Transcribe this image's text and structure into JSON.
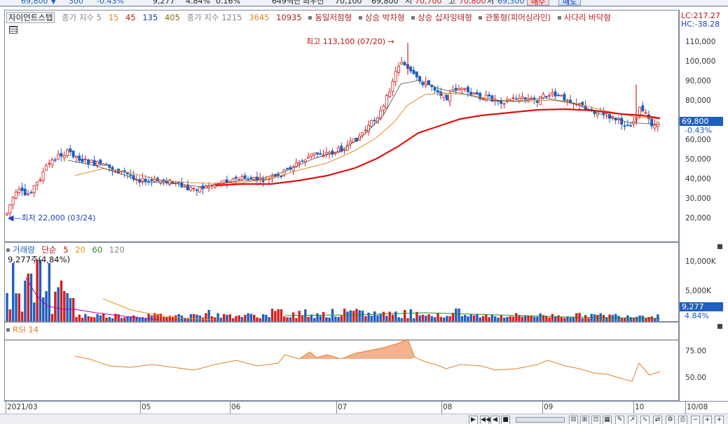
{
  "top_strip": {
    "price": "69,800",
    "arrow": "▼",
    "change": "300",
    "change_pct": "-0.43%",
    "volume": "9,277",
    "vol_pct": "4.84%",
    "turnover_pct": "0.16%",
    "amount": "649백만",
    "label_prev": "최우선",
    "prev_val": "70,100",
    "open_val": "69,800",
    "label_hi": "시",
    "hi_val": "70,700",
    "label_g": "고",
    "g_val": "70,800",
    "label_lo": "저",
    "lo_val": "69,300",
    "buy_btn": "매수",
    "sell_btn": "매도"
  },
  "price_legend": {
    "indicator_name": "자이언트스텝",
    "ma_label_1": "종가 지수 5",
    "ma_vals_1": [
      "15",
      "45",
      "135",
      "405"
    ],
    "ma_label_2": "종가 지수 1215",
    "ma_vals_2": [
      "3645",
      "10935"
    ],
    "patterns": [
      "동일저점형",
      "상승 박차형",
      "상승 십자잉태형",
      "관통형(피어싱라인)",
      "사다리 바닥형"
    ]
  },
  "price_axis": {
    "lc": "LC:217.27",
    "hc": "HC:-38.28",
    "ticks": [
      "110,000",
      "100,000",
      "90,000",
      "80,000",
      "70,000",
      "60,000",
      "50,000",
      "40,000",
      "30,000",
      "20,000"
    ],
    "current_price": "69,800",
    "current_change": "-0.43%"
  },
  "annotations": {
    "high": "최고 113,100 (07/20)",
    "low": "최저 22,000 (03/24)"
  },
  "volume_legend": {
    "label": "거래량",
    "ma_type": "단순",
    "ma_vals": [
      "5",
      "20",
      "60",
      "120"
    ],
    "value_text": "9,277주(4,84%)"
  },
  "volume_axis": {
    "ticks": [
      "10,000K",
      "5,000K"
    ],
    "current": "9,277",
    "current_pct": "4.84%"
  },
  "rsi_legend": {
    "label": "RSI 14"
  },
  "rsi_axis": {
    "ticks": [
      "75.00",
      "50.00"
    ]
  },
  "x_axis": {
    "labels": [
      "2021/03",
      "05",
      "06",
      "07",
      "08",
      "09",
      "10",
      "10/08"
    ]
  },
  "colors": {
    "up": "#d42020",
    "down": "#1f5fbf",
    "ma_fast": "#4a4a4a",
    "ma_mid": "#e08a2b",
    "ma_slow": "#e01010",
    "rsi_fill": "#f2a57a",
    "rsi_line": "#e0812c"
  },
  "chart_data": {
    "type": "candlestick",
    "x_range": [
      "2021/03",
      "10/08"
    ],
    "price_range": [
      15000,
      118000
    ],
    "milestones": [
      {
        "date": "03/24",
        "low": 22000
      },
      {
        "date": "07/20",
        "high": 113100
      },
      {
        "date": "10/08",
        "close": 69800
      }
    ],
    "rsi_levels": [
      75,
      50
    ]
  }
}
